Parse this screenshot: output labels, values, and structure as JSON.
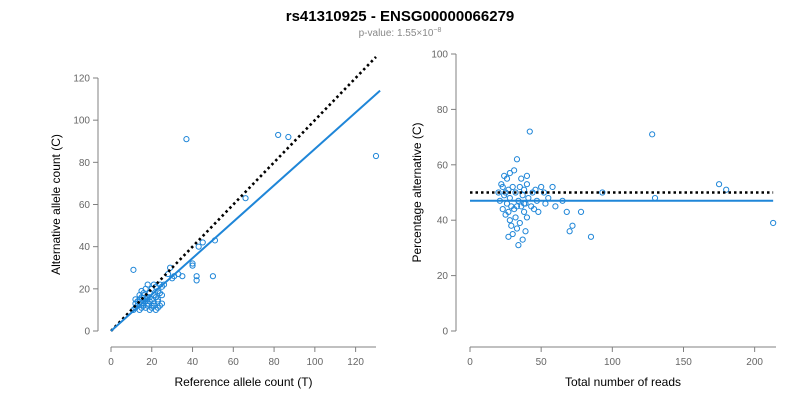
{
  "title": "rs41310925 - ENSG00000066279",
  "subtitle_prefix": "p-value: 1.55×10",
  "subtitle_exponent": "−8",
  "colors": {
    "points": "#1f86d8",
    "fit": "#1f86d8",
    "reference": "#000000"
  },
  "chart_data": [
    {
      "type": "scatter",
      "xlabel": "Reference allele count (T)",
      "ylabel": "Alternative allele count (C)",
      "xlim": [
        0,
        130
      ],
      "ylim": [
        0,
        120
      ],
      "xticks": [
        "0",
        "20",
        "40",
        "60",
        "80",
        "100",
        "120"
      ],
      "yticks": [
        "0",
        "20",
        "40",
        "60",
        "80",
        "100",
        "120"
      ],
      "x": [
        11,
        12,
        12,
        13,
        13,
        14,
        14,
        15,
        15,
        15,
        16,
        16,
        16,
        17,
        17,
        17,
        18,
        18,
        18,
        19,
        19,
        19,
        20,
        20,
        20,
        21,
        21,
        21,
        22,
        22,
        22,
        23,
        23,
        23,
        24,
        24,
        24,
        25,
        25,
        25,
        15,
        16,
        18,
        20,
        22,
        12,
        13,
        14,
        17,
        19,
        21,
        23,
        26,
        28,
        29,
        30,
        31,
        33,
        35,
        37,
        40,
        40,
        42,
        42,
        43,
        45,
        50,
        51,
        66,
        82,
        87,
        130,
        11
      ],
      "y": [
        10,
        11,
        13,
        12,
        14,
        10,
        15,
        11,
        13,
        16,
        12,
        14,
        18,
        11,
        15,
        20,
        12,
        16,
        22,
        10,
        14,
        18,
        11,
        15,
        20,
        12,
        17,
        22,
        10,
        16,
        21,
        11,
        14,
        19,
        12,
        18,
        22,
        13,
        17,
        21,
        19,
        17,
        13,
        12,
        16,
        15,
        12,
        17,
        14,
        16,
        13,
        15,
        22,
        27,
        30,
        25,
        26,
        27,
        26,
        91,
        32,
        31,
        26,
        24,
        40,
        42,
        26,
        43,
        63,
        93,
        92,
        83,
        29
      ],
      "lines": [
        {
          "kind": "reference",
          "style": "dotted",
          "x": [
            0,
            130
          ],
          "y": [
            0,
            130
          ]
        },
        {
          "kind": "fit",
          "style": "solid",
          "x": [
            0,
            132
          ],
          "y": [
            0,
            114
          ]
        }
      ]
    },
    {
      "type": "scatter",
      "xlabel": "Total number of reads",
      "ylabel": "Percentage alternative (C)",
      "xlim": [
        0,
        215
      ],
      "ylim": [
        0,
        100
      ],
      "xticks": [
        "0",
        "50",
        "100",
        "150",
        "200"
      ],
      "yticks": [
        "0",
        "20",
        "40",
        "60",
        "80",
        "100"
      ],
      "x": [
        20,
        21,
        22,
        23,
        23,
        24,
        24,
        25,
        25,
        26,
        26,
        27,
        27,
        28,
        28,
        29,
        29,
        30,
        30,
        31,
        31,
        32,
        32,
        33,
        33,
        34,
        34,
        35,
        35,
        36,
        36,
        37,
        37,
        38,
        38,
        39,
        39,
        40,
        40,
        41,
        42,
        43,
        44,
        45,
        46,
        47,
        48,
        50,
        52,
        53,
        55,
        58,
        60,
        65,
        68,
        70,
        72,
        78,
        85,
        93,
        128,
        130,
        175,
        180,
        213,
        40,
        38,
        28,
        27,
        33
      ],
      "y": [
        50,
        47,
        53,
        44,
        52,
        56,
        49,
        50,
        42,
        46,
        55,
        43,
        51,
        40,
        48,
        38,
        45,
        52,
        35,
        44,
        58,
        41,
        50,
        37,
        62,
        47,
        31,
        52,
        39,
        55,
        45,
        33,
        49,
        43,
        51,
        36,
        46,
        53,
        41,
        48,
        72,
        45,
        50,
        44,
        51,
        47,
        43,
        52,
        50,
        46,
        48,
        52,
        45,
        47,
        43,
        36,
        38,
        43,
        34,
        50,
        71,
        48,
        53,
        51,
        39,
        56,
        46,
        57,
        34,
        45
      ],
      "lines": [
        {
          "kind": "reference",
          "style": "dotted",
          "x": [
            0,
            213
          ],
          "y": [
            50,
            50
          ]
        },
        {
          "kind": "fit",
          "style": "solid",
          "x": [
            0,
            213
          ],
          "y": [
            47,
            47
          ]
        }
      ]
    }
  ]
}
